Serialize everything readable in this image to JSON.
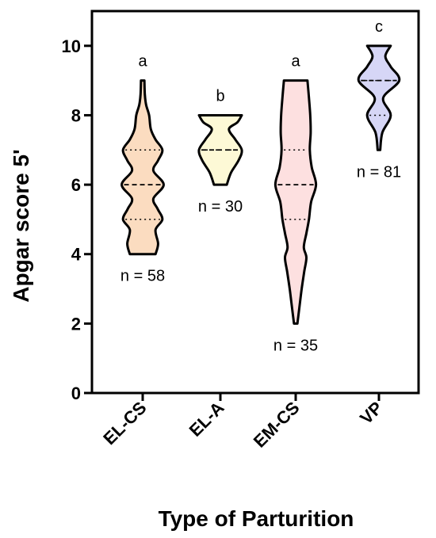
{
  "chart_data": {
    "type": "violin",
    "xlabel": "Type of Parturition",
    "ylabel": "Apgar score 5'",
    "ylim": [
      0,
      11
    ],
    "yticks": [
      0,
      2,
      4,
      6,
      8,
      10
    ],
    "grid": false,
    "legend": "none",
    "series": [
      {
        "category": "EL-CS",
        "color": "#fbdcc0",
        "min": 4,
        "max": 9,
        "q1": 5,
        "median": 6,
        "q3": 7,
        "n_label": "n = 58",
        "letter": "a",
        "profile": [
          [
            4,
            0.6
          ],
          [
            4.3,
            0.72
          ],
          [
            4.7,
            0.6
          ],
          [
            5,
            0.92
          ],
          [
            5.3,
            0.7
          ],
          [
            5.6,
            0.5
          ],
          [
            6,
            0.98
          ],
          [
            6.4,
            0.5
          ],
          [
            6.7,
            0.72
          ],
          [
            7,
            0.92
          ],
          [
            7.3,
            0.6
          ],
          [
            7.6,
            0.38
          ],
          [
            8,
            0.3
          ],
          [
            8.3,
            0.16
          ],
          [
            8.6,
            0.1
          ],
          [
            9,
            0.08
          ]
        ]
      },
      {
        "category": "EL-A",
        "color": "#fdf9d6",
        "min": 6,
        "max": 8,
        "q1": 7,
        "median": 7,
        "q3": 7,
        "n_label": "n = 30",
        "letter": "b",
        "profile": [
          [
            6,
            0.3
          ],
          [
            6.35,
            0.5
          ],
          [
            6.7,
            0.85
          ],
          [
            7,
            1.0
          ],
          [
            7.3,
            0.7
          ],
          [
            7.6,
            0.4
          ],
          [
            7.8,
            0.8
          ],
          [
            8,
            1.0
          ]
        ]
      },
      {
        "category": "EM-CS",
        "color": "#fde0e0",
        "min": 2,
        "max": 9,
        "q1": 5,
        "median": 6,
        "q3": 7,
        "n_label": "n = 35",
        "letter": "a",
        "profile": [
          [
            2,
            0.08
          ],
          [
            2.5,
            0.18
          ],
          [
            3,
            0.28
          ],
          [
            3.5,
            0.4
          ],
          [
            3.9,
            0.5
          ],
          [
            4.2,
            0.38
          ],
          [
            4.6,
            0.5
          ],
          [
            5,
            0.62
          ],
          [
            5.5,
            0.72
          ],
          [
            6,
            0.95
          ],
          [
            6.5,
            0.75
          ],
          [
            7,
            0.66
          ],
          [
            7.5,
            0.7
          ],
          [
            8,
            0.68
          ],
          [
            8.5,
            0.62
          ],
          [
            9,
            0.55
          ]
        ]
      },
      {
        "category": "VP",
        "color": "#d6d6f6",
        "min": 7,
        "max": 10,
        "q1": 8,
        "median": 9,
        "q3": 9,
        "n_label": "n = 81",
        "letter": "c",
        "profile": [
          [
            7,
            0.06
          ],
          [
            7.5,
            0.16
          ],
          [
            8,
            0.55
          ],
          [
            8.5,
            0.2
          ],
          [
            9,
            0.95
          ],
          [
            9.4,
            0.55
          ],
          [
            9.7,
            0.3
          ],
          [
            10,
            0.55
          ]
        ]
      }
    ]
  }
}
